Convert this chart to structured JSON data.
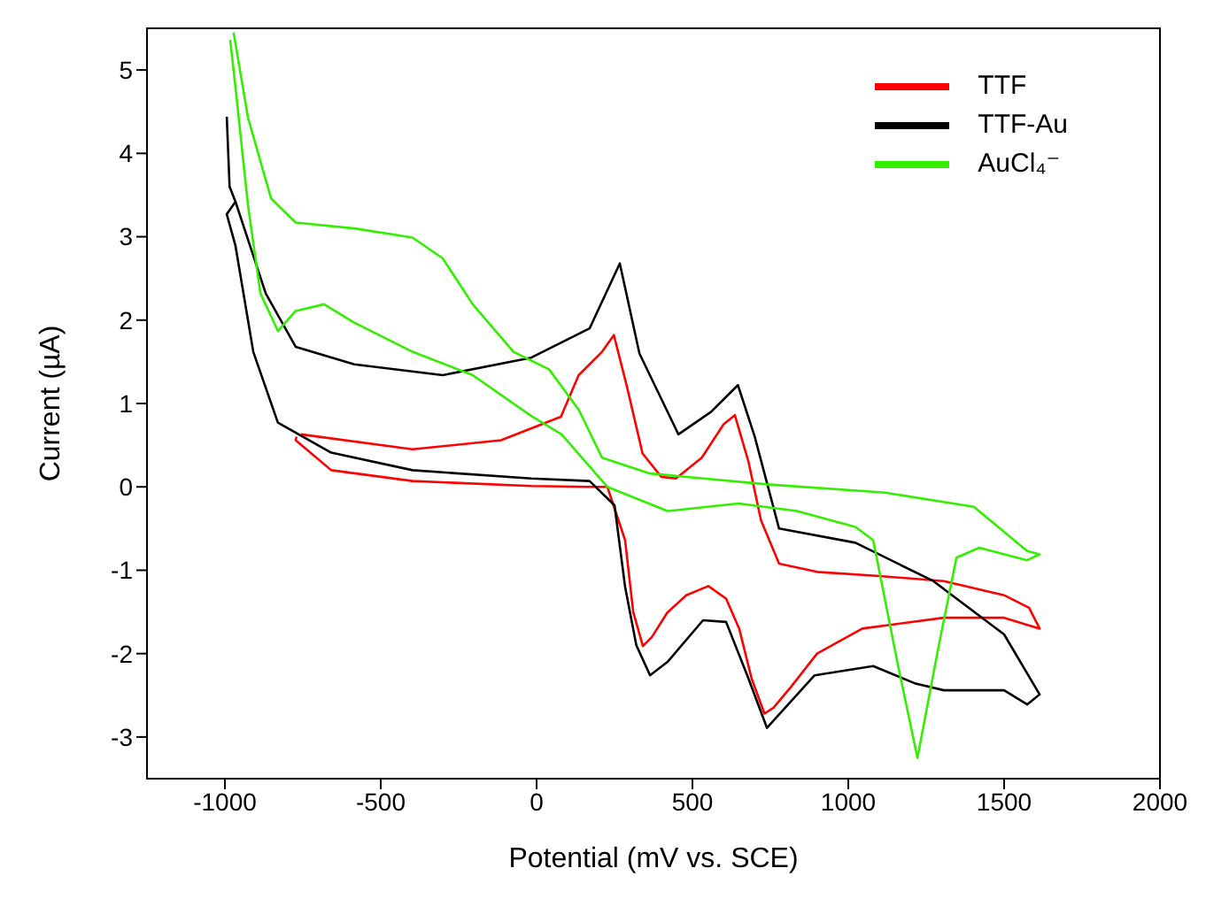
{
  "chart_data": {
    "type": "line",
    "xlabel": "Potential (mV vs. SCE)",
    "ylabel": "Current (µA)",
    "xlim": [
      -1250,
      2000
    ],
    "ylim": [
      -3.5,
      5.5
    ],
    "xticks": [
      -1000,
      -500,
      0,
      500,
      1000,
      1500,
      2000
    ],
    "yticks": [
      -3,
      -2,
      -1,
      0,
      1,
      2,
      3,
      4,
      5
    ],
    "legend": "top right",
    "grid": false,
    "marker": "none",
    "line_style": "solid",
    "series": [
      {
        "name": "TTF",
        "color": "#ff0000",
        "x": [
          -756,
          -398,
          -114,
          78,
          135,
          210,
          248,
          290,
          340,
          400,
          447,
          530,
          600,
          636,
          680,
          720,
          778,
          900,
          1100,
          1307,
          1500,
          1580,
          1614,
          1500,
          1307,
          1045,
          900,
          816,
          760,
          731,
          690,
          650,
          608,
          551,
          480,
          419,
          370,
          341,
          310,
          284,
          227,
          172,
          -17,
          -398,
          -659,
          -773,
          -770
        ],
        "values": [
          0.63,
          0.45,
          0.56,
          0.84,
          1.34,
          1.62,
          1.82,
          1.2,
          0.4,
          0.12,
          0.1,
          0.35,
          0.75,
          0.86,
          0.3,
          -0.4,
          -0.92,
          -1.02,
          -1.07,
          -1.13,
          -1.3,
          -1.45,
          -1.7,
          -1.57,
          -1.57,
          -1.7,
          -2.0,
          -2.4,
          -2.65,
          -2.72,
          -2.3,
          -1.7,
          -1.34,
          -1.19,
          -1.3,
          -1.51,
          -1.8,
          -1.91,
          -1.5,
          -0.64,
          0,
          0,
          0.01,
          0.07,
          0.2,
          0.56,
          0.6
        ]
      },
      {
        "name": "TTF-Au",
        "color": "#000000",
        "x": [
          -994,
          -985,
          -966,
          -869,
          -773,
          -585,
          -301,
          -17,
          170,
          267,
          330,
          455,
          560,
          646,
          700,
          778,
          1023,
          1273,
          1500,
          1614,
          1574,
          1500,
          1307,
          1216,
          1080,
          892,
          739,
          680,
          608,
          534,
          420,
          364,
          320,
          284,
          250,
          170,
          -17,
          -398,
          -659,
          -830,
          -909,
          -966,
          -994,
          -966
        ],
        "values": [
          4.44,
          3.6,
          3.42,
          2.32,
          1.68,
          1.47,
          1.34,
          1.55,
          1.9,
          2.68,
          1.6,
          0.63,
          0.9,
          1.22,
          0.6,
          -0.5,
          -0.67,
          -1.13,
          -1.77,
          -2.49,
          -2.61,
          -2.44,
          -2.44,
          -2.36,
          -2.15,
          -2.26,
          -2.89,
          -2.3,
          -1.62,
          -1.6,
          -2.1,
          -2.26,
          -1.9,
          -1.2,
          -0.22,
          0.07,
          0.1,
          0.2,
          0.41,
          0.77,
          1.62,
          2.89,
          3.27,
          3.42
        ]
      },
      {
        "name": "AuCl₄⁻",
        "color": "#33ee00",
        "x": [
          -972,
          -926,
          -852,
          -773,
          -585,
          -398,
          -301,
          -205,
          -74,
          40,
          136,
          210,
          364,
          739,
          1119,
          1403,
          1574,
          1614,
          1574,
          1420,
          1347,
          1290,
          1222,
          1159,
          1080,
          1023,
          835,
          648,
          420,
          227,
          80,
          -17,
          -205,
          -398,
          -585,
          -682,
          -773,
          -830,
          -886,
          -926,
          -966,
          -983
        ],
        "values": [
          5.45,
          4.43,
          3.46,
          3.17,
          3.1,
          2.99,
          2.74,
          2.19,
          1.62,
          1.41,
          0.92,
          0.35,
          0.16,
          0.03,
          -0.07,
          -0.24,
          -0.77,
          -0.81,
          -0.88,
          -0.73,
          -0.85,
          -1.91,
          -3.25,
          -2.13,
          -0.64,
          -0.48,
          -0.29,
          -0.2,
          -0.29,
          0,
          0.63,
          0.85,
          1.34,
          1.62,
          1.97,
          2.19,
          2.11,
          1.87,
          2.32,
          3.38,
          4.79,
          5.36
        ]
      }
    ]
  }
}
